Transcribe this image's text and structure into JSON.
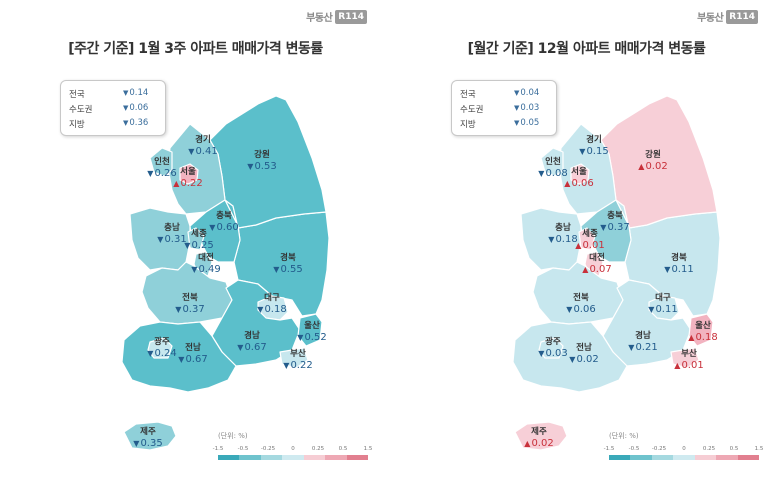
{
  "brand": {
    "logo_text": "부동산",
    "logo_badge": "R114"
  },
  "weekly": {
    "title": "[주간 기준] 1월 3주 아파트 매매가격 변동률",
    "summary": [
      {
        "name": "전국",
        "arrow": "▼",
        "value": "0.14"
      },
      {
        "name": "수도권",
        "arrow": "▼",
        "value": "0.06"
      },
      {
        "name": "지방",
        "arrow": "▼",
        "value": "0.36"
      }
    ],
    "regions": {
      "gyeonggi": {
        "name": "경기",
        "arrow": "▼",
        "value": "0.41"
      },
      "incheon": {
        "name": "인천",
        "arrow": "▼",
        "value": "0.26"
      },
      "seoul": {
        "name": "서울",
        "arrow": "▲",
        "value": "0.22"
      },
      "gangwon": {
        "name": "강원",
        "arrow": "▼",
        "value": "0.53"
      },
      "chungbuk": {
        "name": "충북",
        "arrow": "▼",
        "value": "0.60"
      },
      "chungnam": {
        "name": "충남",
        "arrow": "▼",
        "value": "0.31"
      },
      "sejong": {
        "name": "세종",
        "arrow": "▼",
        "value": "0.25"
      },
      "daejeon": {
        "name": "대전",
        "arrow": "▼",
        "value": "0.49"
      },
      "gyeongbuk": {
        "name": "경북",
        "arrow": "▼",
        "value": "0.55"
      },
      "jeonbuk": {
        "name": "전북",
        "arrow": "▼",
        "value": "0.37"
      },
      "daegu": {
        "name": "대구",
        "arrow": "▼",
        "value": "0.18"
      },
      "gwangju": {
        "name": "광주",
        "arrow": "▼",
        "value": "0.24"
      },
      "jeonnam": {
        "name": "전남",
        "arrow": "▼",
        "value": "0.67"
      },
      "gyeongnam": {
        "name": "경남",
        "arrow": "▼",
        "value": "0.67"
      },
      "ulsan": {
        "name": "울산",
        "arrow": "▼",
        "value": "0.52"
      },
      "busan": {
        "name": "부산",
        "arrow": "▼",
        "value": "0.22"
      },
      "jeju": {
        "name": "제주",
        "arrow": "▼",
        "value": "0.35"
      }
    }
  },
  "monthly": {
    "title": "[월간 기준] 12월 아파트 매매가격 변동률",
    "summary": [
      {
        "name": "전국",
        "arrow": "▼",
        "value": "0.04"
      },
      {
        "name": "수도권",
        "arrow": "▼",
        "value": "0.03"
      },
      {
        "name": "지방",
        "arrow": "▼",
        "value": "0.05"
      }
    ],
    "regions": {
      "gyeonggi": {
        "name": "경기",
        "arrow": "▼",
        "value": "0.15"
      },
      "incheon": {
        "name": "인천",
        "arrow": "▼",
        "value": "0.08"
      },
      "seoul": {
        "name": "서울",
        "arrow": "▲",
        "value": "0.06"
      },
      "gangwon": {
        "name": "강원",
        "arrow": "▲",
        "value": "0.02"
      },
      "chungbuk": {
        "name": "충북",
        "arrow": "▼",
        "value": "0.37"
      },
      "chungnam": {
        "name": "충남",
        "arrow": "▼",
        "value": "0.18"
      },
      "sejong": {
        "name": "세종",
        "arrow": "▲",
        "value": "0.01"
      },
      "daejeon": {
        "name": "대전",
        "arrow": "▲",
        "value": "0.07"
      },
      "gyeongbuk": {
        "name": "경북",
        "arrow": "▼",
        "value": "0.11"
      },
      "jeonbuk": {
        "name": "전북",
        "arrow": "▼",
        "value": "0.06"
      },
      "daegu": {
        "name": "대구",
        "arrow": "▼",
        "value": "0.11"
      },
      "gwangju": {
        "name": "광주",
        "arrow": "▼",
        "value": "0.03"
      },
      "jeonnam": {
        "name": "전남",
        "arrow": "▼",
        "value": "0.02"
      },
      "gyeongnam": {
        "name": "경남",
        "arrow": "▼",
        "value": "0.21"
      },
      "ulsan": {
        "name": "울산",
        "arrow": "▲",
        "value": "0.18"
      },
      "busan": {
        "name": "부산",
        "arrow": "▲",
        "value": "0.01"
      },
      "jeju": {
        "name": "제주",
        "arrow": "▲",
        "value": "0.02"
      }
    }
  },
  "legend": {
    "unit_label": "(단위: %)",
    "ticks": [
      "-1.5",
      "-0.5",
      "-0.25",
      "0",
      "0.25",
      "0.5",
      "1.5"
    ],
    "colors": [
      "#3aa9b9",
      "#6fc3cd",
      "#a5d9e0",
      "#cfeaf0",
      "#f6cdd4",
      "#eea8b4",
      "#e27f8f"
    ]
  },
  "colors": {
    "down_strong": "#5bbfcb",
    "down_mid": "#8fd0d9",
    "down_light": "#c7e7ee",
    "up_light": "#f7cfd7",
    "up_mid": "#f2b3c0",
    "down_text": "#235c8c",
    "up_text": "#c8313b"
  }
}
